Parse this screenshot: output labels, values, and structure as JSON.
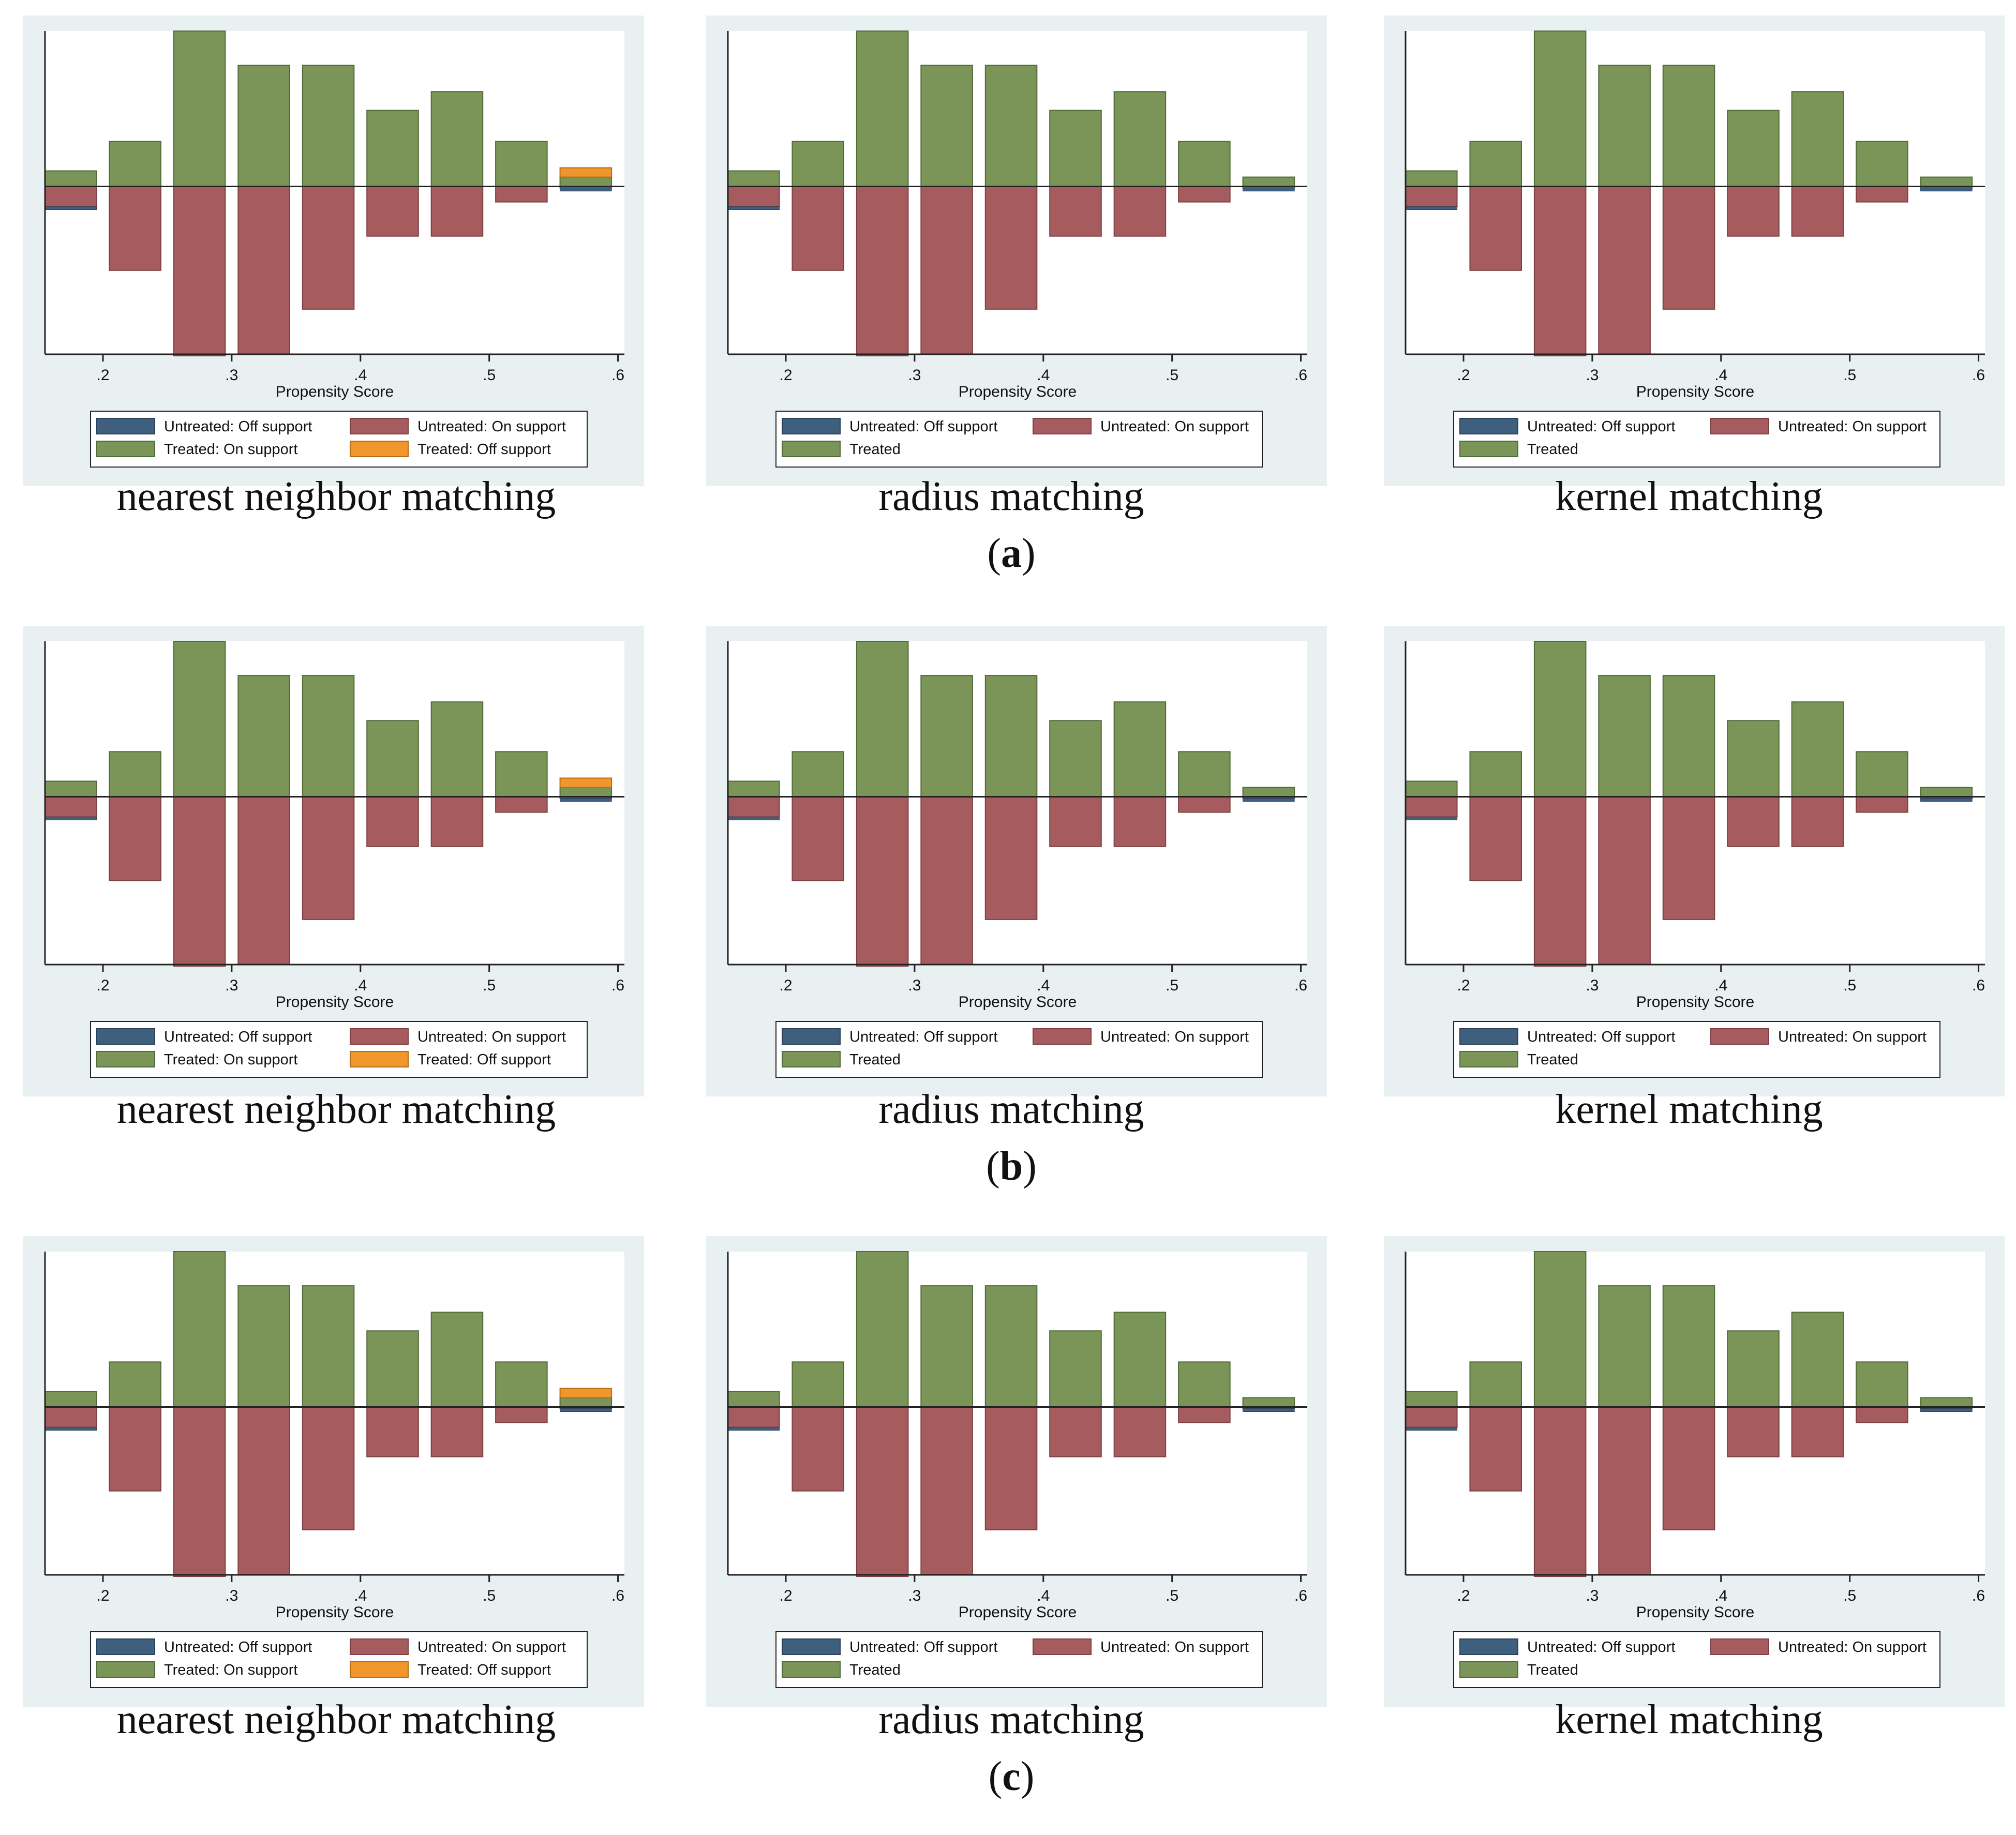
{
  "colors": {
    "panel_bg": "#e8f0f2",
    "plot_bg": "#ffffff",
    "untreated_off": "#3f5f7f",
    "untreated_on": "#a65c5f",
    "treated_on": "#7a9557",
    "treated_off": "#f0962c",
    "edge_green": "#4f6b3a",
    "edge_red": "#7d3f42"
  },
  "rows": [
    {
      "label_open": "(",
      "label_letter": "a",
      "label_close": ")"
    },
    {
      "label_open": "(",
      "label_letter": "b",
      "label_close": ")"
    },
    {
      "label_open": "(",
      "label_letter": "c",
      "label_close": ")"
    }
  ],
  "captions": [
    "nearest neighbor matching",
    "radius matching",
    "kernel matching"
  ],
  "legends": {
    "nearest": [
      "Untreated: Off support",
      "Untreated: On support",
      "Treated: On support",
      "Treated: Off support"
    ],
    "other": [
      "Untreated: Off support",
      "Untreated: On support",
      "Treated"
    ]
  },
  "chart_data": {
    "type": "bar",
    "subtype": "mirrored histogram (psgraph)",
    "xlabel": "Propensity Score",
    "ylabel": "",
    "xlim": [
      0.155,
      0.605
    ],
    "ylim": [
      -1.08,
      1.0
    ],
    "xticks": [
      0.2,
      0.3,
      0.4,
      0.5,
      0.6
    ],
    "xtick_labels": [
      ".2",
      ".3",
      ".4",
      ".5",
      ".6"
    ],
    "bin_centers": [
      0.175,
      0.225,
      0.275,
      0.325,
      0.375,
      0.425,
      0.475,
      0.525,
      0.575
    ],
    "bin_width": 0.04,
    "series": [
      {
        "name": "Treated: On support",
        "values": [
          0.1,
          0.29,
          1.0,
          0.78,
          0.78,
          0.49,
          0.61,
          0.29,
          0.06
        ]
      },
      {
        "name": "Treated: Off support",
        "values": [
          0,
          0,
          0,
          0,
          0,
          0,
          0,
          0,
          0.06
        ]
      },
      {
        "name": "Untreated: On support",
        "values": [
          -0.13,
          -0.54,
          -1.09,
          -1.08,
          -0.79,
          -0.32,
          -0.32,
          -0.1,
          -0.01
        ]
      },
      {
        "name": "Untreated: Off support",
        "values": [
          -0.02,
          0,
          0,
          0,
          0,
          0,
          0,
          0,
          -0.02
        ]
      }
    ],
    "panels": [
      {
        "row": "a",
        "method": "nearest neighbor matching",
        "has_off_support_treated": true
      },
      {
        "row": "a",
        "method": "radius matching",
        "has_off_support_treated": false
      },
      {
        "row": "a",
        "method": "kernel matching",
        "has_off_support_treated": false
      },
      {
        "row": "b",
        "method": "nearest neighbor matching",
        "has_off_support_treated": true
      },
      {
        "row": "b",
        "method": "radius matching",
        "has_off_support_treated": false
      },
      {
        "row": "b",
        "method": "kernel matching",
        "has_off_support_treated": false
      },
      {
        "row": "c",
        "method": "nearest neighbor matching",
        "has_off_support_treated": true
      },
      {
        "row": "c",
        "method": "radius matching",
        "has_off_support_treated": false
      },
      {
        "row": "c",
        "method": "kernel matching",
        "has_off_support_treated": false
      }
    ]
  }
}
